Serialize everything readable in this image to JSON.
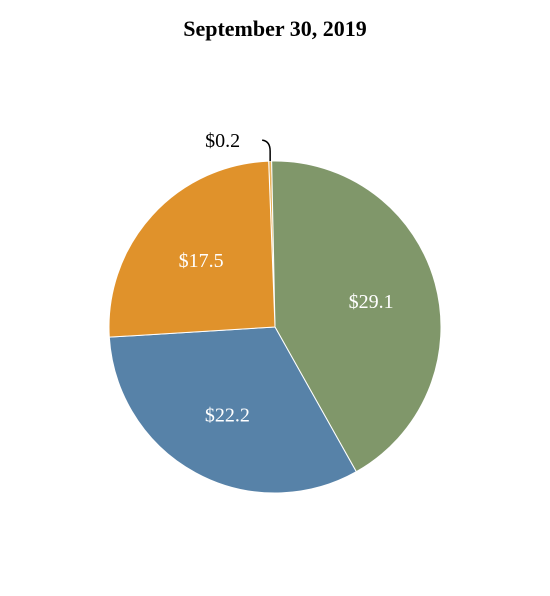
{
  "chart_data": {
    "type": "pie",
    "title": "September 30, 2019",
    "slices": [
      {
        "label": "$0.2",
        "value": 0.2,
        "color": "#e9b25a",
        "label_color": "#000000",
        "label_outside": true
      },
      {
        "label": "$29.1",
        "value": 29.1,
        "color": "#80976a",
        "label_color": "#ffffff",
        "label_outside": false
      },
      {
        "label": "$22.2",
        "value": 22.2,
        "color": "#5782a8",
        "label_color": "#ffffff",
        "label_outside": false
      },
      {
        "label": "$17.5",
        "value": 17.5,
        "color": "#e0922b",
        "label_color": "#ffffff",
        "label_outside": false
      }
    ]
  }
}
